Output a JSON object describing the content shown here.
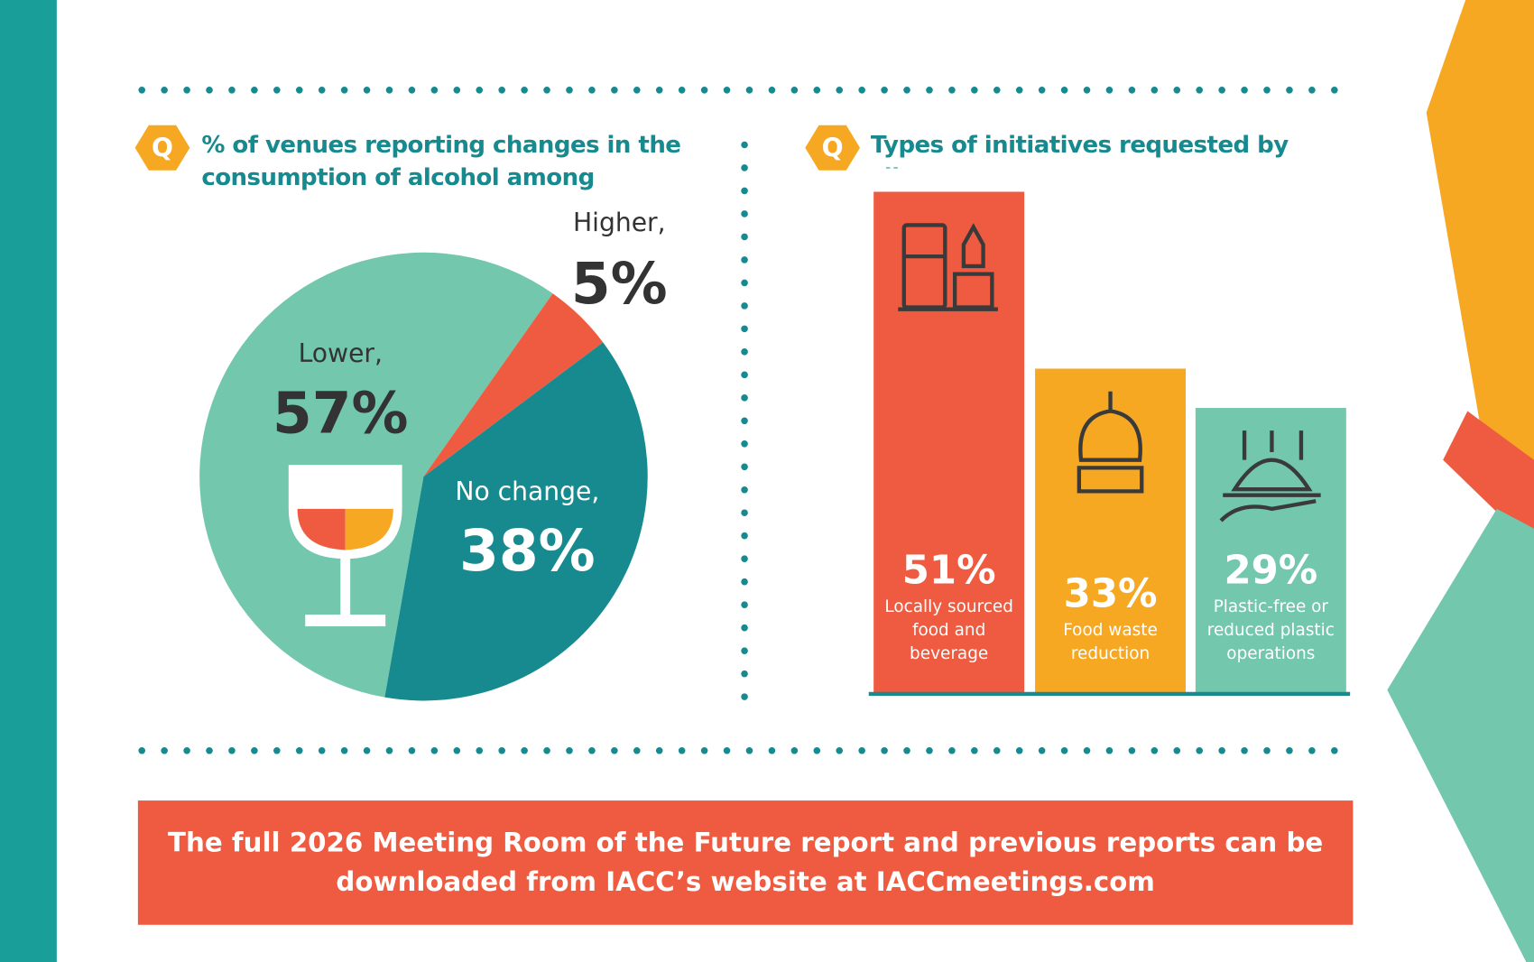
{
  "icon_label": "Q",
  "chart_data": [
    {
      "type": "pie",
      "title": "% of venues reporting changes in the consumption of alcohol among attendees",
      "categories": [
        "Lower,",
        "Higher,",
        "No change,"
      ],
      "values": [
        57,
        5,
        38
      ],
      "value_labels": [
        "57%",
        "5%",
        "38%"
      ],
      "colors": [
        "#72c7ad",
        "#ef5b40",
        "#168a8f"
      ]
    },
    {
      "type": "bar",
      "title": "Types of initiatives requested by clients",
      "categories": [
        "Locally sourced food and beverage",
        "Food waste reduction",
        "Plastic-free or reduced plastic operations"
      ],
      "values": [
        51,
        33,
        29
      ],
      "value_labels": [
        "51%",
        "33%",
        "29%"
      ],
      "colors": [
        "#ef5b40",
        "#f7a823",
        "#72c7ad"
      ]
    }
  ],
  "footer": "The full 2026 Meeting Room of the Future report and previous reports can be downloaded from IACC’s website at IACCmeetings.com"
}
